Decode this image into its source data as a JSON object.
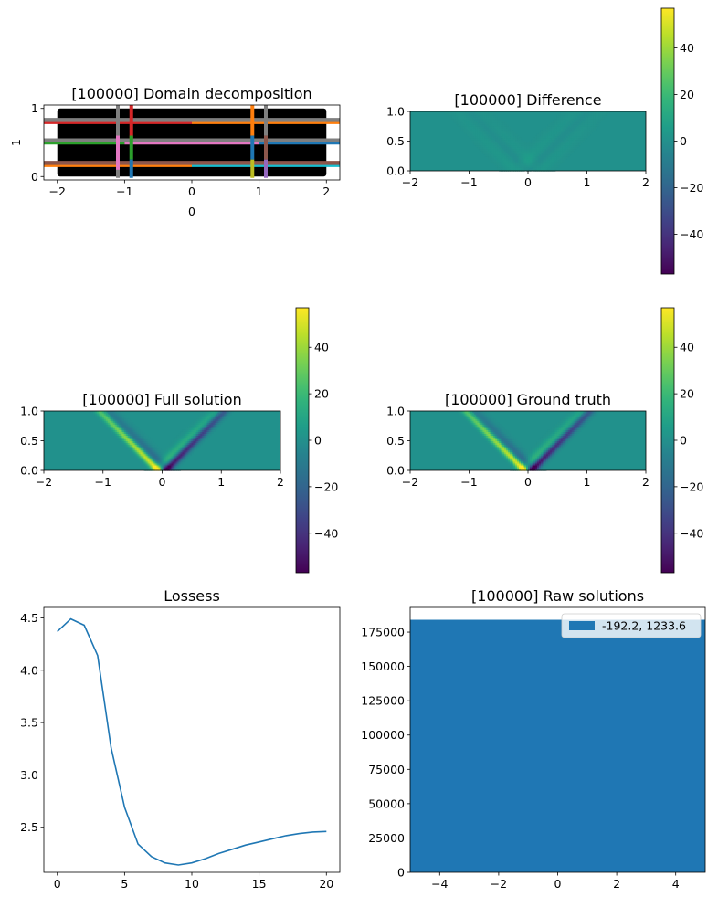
{
  "colors": {
    "axis": "#000000",
    "line": "#1f77b4",
    "hist": "#1f77b4",
    "field_background": "#21918c",
    "domain_background": "#000000",
    "viridis": [
      "#440154",
      "#482878",
      "#3e4989",
      "#31688e",
      "#26828e",
      "#1f9e89",
      "#35b779",
      "#6ece58",
      "#b5de2b",
      "#fde725"
    ]
  },
  "chart_data": [
    {
      "type": "line",
      "panel": "domain-decomposition",
      "title": "[100000] Domain decomposition",
      "xlabel": "0",
      "ylabel": "1",
      "xlim": [
        -2.2,
        2.2
      ],
      "ylim": [
        -0.05,
        1.05
      ],
      "xticks": [
        -2,
        -1,
        0,
        1,
        2
      ],
      "yticks": [
        0,
        1
      ],
      "background_rect": {
        "x": [
          -2,
          2
        ],
        "y": [
          0,
          1
        ],
        "color": "#000000"
      },
      "horizontal_lines": [
        {
          "y": 0.8,
          "x": [
            -2.2,
            0.0
          ],
          "color": "#d62728"
        },
        {
          "y": 0.8,
          "x": [
            0.0,
            2.2
          ],
          "color": "#ff7f0e"
        },
        {
          "y": 0.83,
          "x": [
            -2.2,
            2.2
          ],
          "color": "#7f7f7f"
        },
        {
          "y": 0.5,
          "x": [
            -2.2,
            -1.0
          ],
          "color": "#2ca02c"
        },
        {
          "y": 0.5,
          "x": [
            -1.0,
            1.0
          ],
          "color": "#e377c2"
        },
        {
          "y": 0.5,
          "x": [
            1.0,
            2.2
          ],
          "color": "#1f77b4"
        },
        {
          "y": 0.53,
          "x": [
            -2.2,
            2.2
          ],
          "color": "#7f7f7f"
        },
        {
          "y": 0.17,
          "x": [
            -2.2,
            0.0
          ],
          "color": "#ff7f0e"
        },
        {
          "y": 0.17,
          "x": [
            0.0,
            2.2
          ],
          "color": "#17becf"
        },
        {
          "y": 0.2,
          "x": [
            -2.2,
            2.2
          ],
          "color": "#8c564b"
        }
      ],
      "vertical_lines": [
        {
          "x": -1.1,
          "y": [
            -0.02,
            1.05
          ],
          "color": "#7f7f7f"
        },
        {
          "x": -1.1,
          "y": [
            0.1,
            0.6
          ],
          "color": "#e377c2"
        },
        {
          "x": -0.9,
          "y": [
            0.55,
            1.05
          ],
          "color": "#d62728"
        },
        {
          "x": -0.9,
          "y": [
            0.25,
            0.6
          ],
          "color": "#2ca02c"
        },
        {
          "x": -0.9,
          "y": [
            -0.02,
            0.25
          ],
          "color": "#1f77b4"
        },
        {
          "x": 0.9,
          "y": [
            0.6,
            1.05
          ],
          "color": "#ff7f0e"
        },
        {
          "x": 0.9,
          "y": [
            0.25,
            0.6
          ],
          "color": "#1f77b4"
        },
        {
          "x": 0.9,
          "y": [
            -0.02,
            0.25
          ],
          "color": "#bcbd22"
        },
        {
          "x": 1.1,
          "y": [
            0.6,
            1.05
          ],
          "color": "#7f7f7f"
        },
        {
          "x": 1.1,
          "y": [
            0.25,
            0.6
          ],
          "color": "#8c564b"
        },
        {
          "x": 1.1,
          "y": [
            -0.02,
            0.25
          ],
          "color": "#9467bd"
        }
      ]
    },
    {
      "type": "heatmap",
      "panel": "difference",
      "title": "[100000] Difference",
      "xlim": [
        -2,
        2
      ],
      "ylim": [
        0,
        1
      ],
      "xticks": [
        -2,
        -1,
        0,
        1,
        2
      ],
      "yticks": [
        0.0,
        0.5,
        1.0
      ],
      "clim": [
        -57,
        57
      ],
      "colorbar_ticks": [
        -40,
        -20,
        0,
        20,
        40
      ],
      "features": [
        {
          "kind": "v-band",
          "x0": -0.2,
          "slope": 1,
          "value": 4,
          "width": 0.12
        },
        {
          "kind": "v-band",
          "x0": 0.2,
          "slope": 1,
          "value": 3,
          "width": 0.12
        },
        {
          "kind": "v-band",
          "x0": 0.0,
          "slope": 1,
          "value": -3,
          "width": 0.08
        }
      ]
    },
    {
      "type": "heatmap",
      "panel": "full-solution",
      "title": "[100000] Full solution",
      "xlim": [
        -2,
        2
      ],
      "ylim": [
        0,
        1
      ],
      "xticks": [
        -2,
        -1,
        0,
        1,
        2
      ],
      "yticks": [
        0.0,
        0.5,
        1.0
      ],
      "clim": [
        -57,
        57
      ],
      "colorbar_ticks": [
        -40,
        -20,
        0,
        20,
        40
      ],
      "features": [
        {
          "kind": "left-ray",
          "x0": -0.05,
          "value": 57,
          "width": 0.06
        },
        {
          "kind": "left-ray-outer",
          "x0": 0.1,
          "value": -20,
          "width": 0.08
        },
        {
          "kind": "right-ray",
          "x0": 0.05,
          "value": -57,
          "width": 0.06
        },
        {
          "kind": "right-ray-outer",
          "x0": -0.1,
          "value": 20,
          "width": 0.08
        }
      ]
    },
    {
      "type": "heatmap",
      "panel": "ground-truth",
      "title": "[100000] Ground truth",
      "xlim": [
        -2,
        2
      ],
      "ylim": [
        0,
        1
      ],
      "xticks": [
        -2,
        -1,
        0,
        1,
        2
      ],
      "yticks": [
        0.0,
        0.5,
        1.0
      ],
      "clim": [
        -57,
        57
      ],
      "colorbar_ticks": [
        -40,
        -20,
        0,
        20,
        40
      ],
      "features": [
        {
          "kind": "left-ray",
          "x0": -0.05,
          "value": 57,
          "width": 0.06
        },
        {
          "kind": "left-ray-outer",
          "x0": 0.1,
          "value": -20,
          "width": 0.08
        },
        {
          "kind": "right-ray",
          "x0": 0.05,
          "value": -57,
          "width": 0.06
        },
        {
          "kind": "right-ray-outer",
          "x0": -0.1,
          "value": 20,
          "width": 0.08
        }
      ]
    },
    {
      "type": "line",
      "panel": "losses",
      "title": "Lossess",
      "xlim": [
        -1,
        21
      ],
      "ylim": [
        2.07,
        4.6
      ],
      "xticks": [
        0,
        5,
        10,
        15,
        20
      ],
      "yticks": [
        2.5,
        3.0,
        3.5,
        4.0,
        4.5
      ],
      "ytick_labels": [
        "2.5",
        "3.0",
        "3.5",
        "4.0",
        "4.5"
      ],
      "x": [
        0,
        1,
        2,
        3,
        4,
        5,
        6,
        7,
        8,
        9,
        10,
        11,
        12,
        13,
        14,
        15,
        16,
        17,
        18,
        19,
        20
      ],
      "y": [
        4.37,
        4.49,
        4.43,
        4.14,
        3.26,
        2.69,
        2.34,
        2.22,
        2.16,
        2.14,
        2.16,
        2.2,
        2.25,
        2.29,
        2.33,
        2.36,
        2.39,
        2.42,
        2.44,
        2.455,
        2.46
      ]
    },
    {
      "type": "bar",
      "panel": "raw-solutions",
      "title": "[100000] Raw solutions",
      "xlim": [
        -5,
        5
      ],
      "ylim": [
        0,
        193000
      ],
      "xticks": [
        -4,
        -2,
        0,
        2,
        4
      ],
      "yticks": [
        0,
        25000,
        50000,
        75000,
        100000,
        125000,
        150000,
        175000
      ],
      "bins": [
        {
          "x0": -5,
          "x1": 5,
          "count": 184000
        }
      ],
      "legend": [
        "-192.2, 1233.6"
      ],
      "legend_position": "upper right"
    }
  ]
}
